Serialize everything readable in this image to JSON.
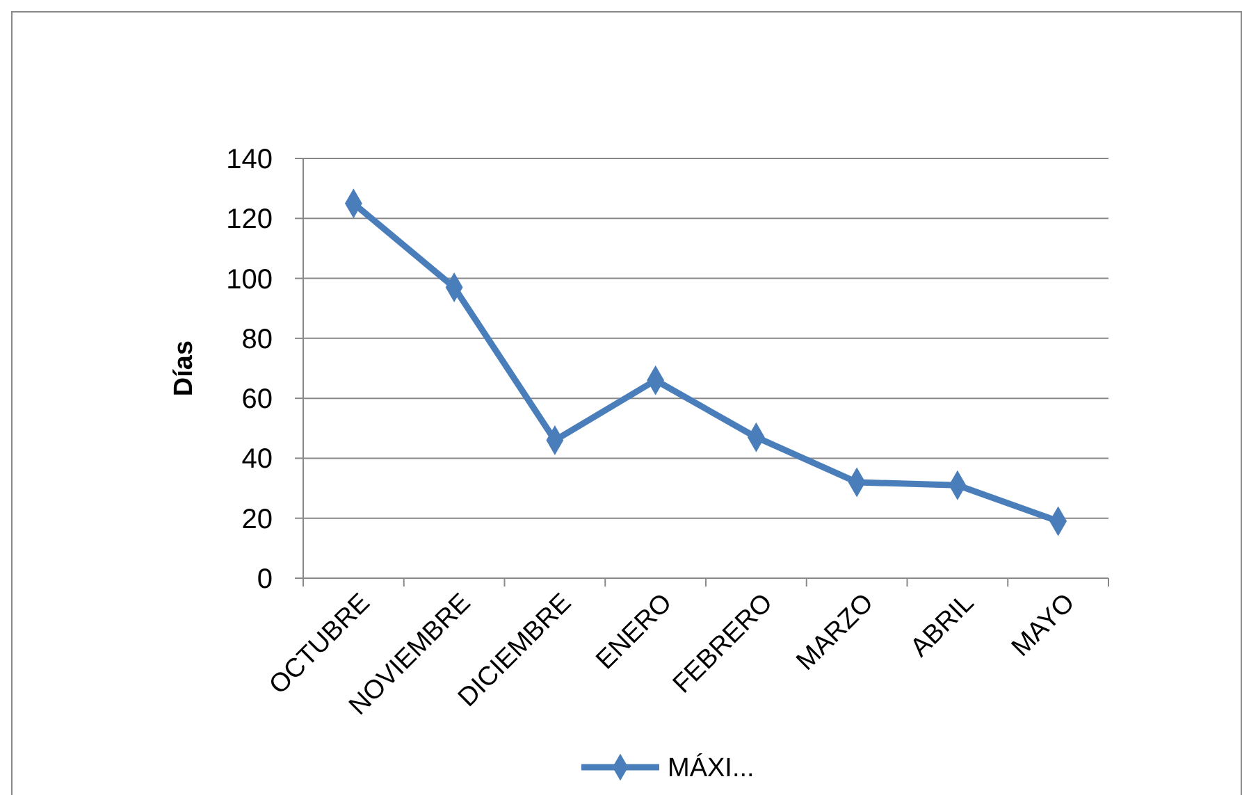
{
  "chart_data": {
    "type": "line",
    "ylabel": "Días",
    "categories": [
      "OCTUBRE",
      "NOVIEMBRE",
      "DICIEMBRE",
      "ENERO",
      "FEBRERO",
      "MARZO",
      "ABRIL",
      "MAYO"
    ],
    "series": [
      {
        "name": "MÁXI...",
        "color": "#4a7ebb",
        "values": [
          125,
          97,
          46,
          66,
          47,
          32,
          31,
          19
        ]
      }
    ],
    "ylim": [
      0,
      140
    ],
    "yticks": [
      0,
      20,
      40,
      60,
      80,
      100,
      120,
      140
    ],
    "grid": "y",
    "legend": "bottom",
    "marker": "diamond",
    "line_style": "solid"
  }
}
